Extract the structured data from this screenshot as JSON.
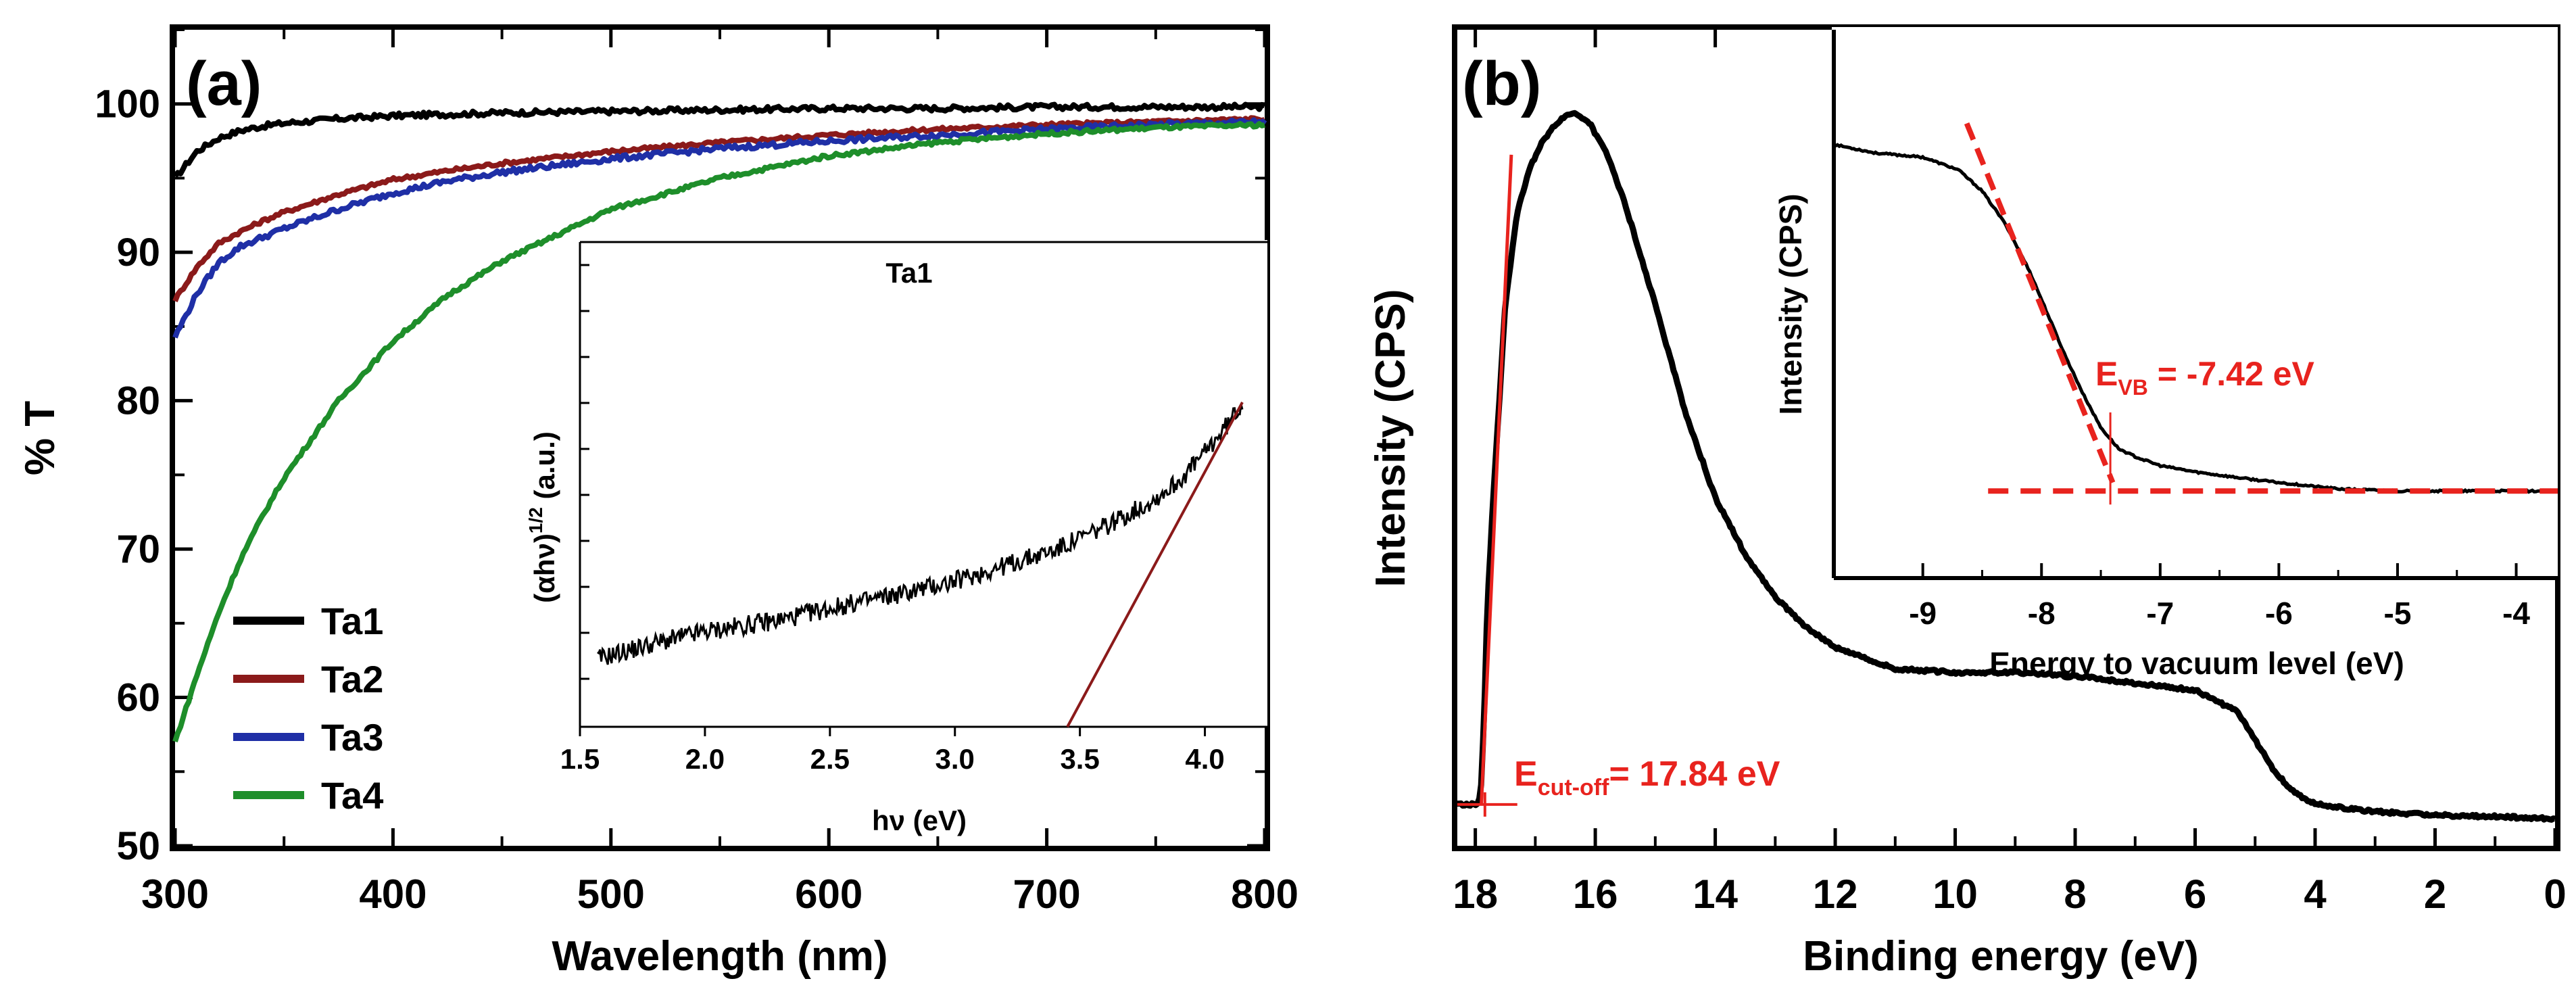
{
  "colors": {
    "ta1": "#000000",
    "ta2": "#8B1A1A",
    "ta3": "#1F2FA6",
    "ta4": "#1E8E2A",
    "fit": "#8B1A1A",
    "annotation": "#E8231E",
    "axis": "#000000"
  },
  "chart_data": [
    {
      "type": "line",
      "panel": "(a)",
      "xlabel": "Wavelength (nm)",
      "ylabel": "% T",
      "xlim": [
        300,
        800
      ],
      "ylim": [
        50,
        105
      ],
      "xticks": [
        300,
        400,
        500,
        600,
        700,
        800
      ],
      "yticks": [
        50,
        60,
        70,
        80,
        90,
        100
      ],
      "legend_position": "bottom-left",
      "x": [
        300,
        310,
        320,
        330,
        340,
        350,
        375,
        400,
        425,
        450,
        500,
        550,
        600,
        650,
        700,
        750,
        800
      ],
      "series": [
        {
          "name": "Ta1",
          "values": [
            95.0,
            96.8,
            97.7,
            98.2,
            98.5,
            98.7,
            99.0,
            99.2,
            99.3,
            99.4,
            99.5,
            99.6,
            99.7,
            99.7,
            99.8,
            99.8,
            99.8
          ]
        },
        {
          "name": "Ta2",
          "values": [
            86.8,
            89.0,
            90.6,
            91.4,
            92.1,
            92.7,
            93.9,
            94.9,
            95.5,
            96.0,
            96.8,
            97.4,
            97.9,
            98.3,
            98.6,
            98.8,
            99.0
          ]
        },
        {
          "name": "Ta3",
          "values": [
            84.3,
            87.2,
            89.3,
            90.4,
            91.0,
            91.6,
            92.9,
            94.0,
            94.8,
            95.4,
            96.3,
            97.0,
            97.5,
            97.9,
            98.3,
            98.6,
            98.8
          ]
        },
        {
          "name": "Ta4",
          "values": [
            57.0,
            61.5,
            65.7,
            69.3,
            72.2,
            74.8,
            80.0,
            84.0,
            87.1,
            89.4,
            92.9,
            95.0,
            96.5,
            97.4,
            98.0,
            98.4,
            98.6
          ]
        }
      ],
      "inset": {
        "type": "line",
        "title": "Ta1",
        "xlabel": "hν (eV)",
        "ylabel_main": "(αhν)",
        "ylabel_sup": "1/2",
        "ylabel_unit": " (a.u.)",
        "xlim": [
          1.5,
          4.25
        ],
        "ylim": [
          0,
          1
        ],
        "xticks": [
          1.5,
          2.0,
          2.5,
          3.0,
          3.5,
          4.0
        ],
        "xtick_labels": [
          "1.5",
          "2.0",
          "2.5",
          "3.0",
          "3.5",
          "4.0"
        ],
        "x": [
          1.57,
          1.8,
          2.0,
          2.3,
          2.5,
          2.8,
          3.0,
          3.2,
          3.4,
          3.6,
          3.8,
          3.9,
          4.0,
          4.1,
          4.15
        ],
        "values": [
          0.14,
          0.18,
          0.21,
          0.24,
          0.27,
          0.31,
          0.34,
          0.38,
          0.42,
          0.48,
          0.55,
          0.6,
          0.67,
          0.75,
          0.8
        ],
        "fit_line": {
          "x": [
            3.45,
            4.15
          ],
          "values": [
            0.0,
            0.8
          ]
        }
      }
    },
    {
      "type": "line",
      "panel": "(b)",
      "xlabel": "Binding energy (eV)",
      "ylabel": "Intensity (CPS)",
      "xlim": [
        18.3,
        0
      ],
      "ylim": [
        0,
        1
      ],
      "xticks": [
        18,
        16,
        14,
        12,
        10,
        8,
        6,
        4,
        2,
        0
      ],
      "x": [
        18.3,
        17.95,
        17.9,
        17.85,
        17.8,
        17.7,
        17.5,
        17.3,
        17.1,
        16.9,
        16.7,
        16.5,
        16.35,
        16.1,
        15.8,
        15.5,
        15.0,
        14.5,
        14.0,
        13.5,
        13.0,
        12.5,
        12.0,
        11.0,
        10.0,
        9.0,
        8.0,
        7.0,
        6.0,
        5.3,
        5.0,
        4.7,
        4.4,
        4.1,
        3.9,
        3.5,
        3.0,
        2.0,
        1.0,
        0.0
      ],
      "series": [
        {
          "name": "spectrum",
          "values": [
            0.02,
            0.02,
            0.05,
            0.15,
            0.3,
            0.45,
            0.72,
            0.85,
            0.91,
            0.945,
            0.97,
            0.985,
            0.99,
            0.975,
            0.93,
            0.86,
            0.72,
            0.57,
            0.45,
            0.37,
            0.31,
            0.27,
            0.24,
            0.21,
            0.205,
            0.205,
            0.2,
            0.19,
            0.18,
            0.15,
            0.11,
            0.07,
            0.04,
            0.025,
            0.02,
            0.015,
            0.01,
            0.005,
            0.003,
            0.0
          ]
        }
      ],
      "annotation": {
        "main": "E",
        "sub": "cut-off",
        "value_text": "= 17.84 eV"
      },
      "cutoff_line": {
        "x": [
          17.9,
          17.4
        ],
        "values": [
          0.02,
          0.93
        ]
      },
      "inset": {
        "type": "line",
        "xlabel": "Energy to vacuum level (eV)",
        "ylabel": "Intensity (CPS)",
        "xlim": [
          -9.75,
          -3.65
        ],
        "ylim": [
          0,
          1
        ],
        "xticks": [
          -9,
          -8,
          -7,
          -6,
          -5,
          -4
        ],
        "xtick_labels": [
          "-9",
          "-8",
          "-7",
          "-6",
          "-5",
          "-4"
        ],
        "x": [
          -9.75,
          -9.4,
          -9.0,
          -8.7,
          -8.5,
          -8.3,
          -8.1,
          -7.95,
          -7.8,
          -7.65,
          -7.5,
          -7.35,
          -7.2,
          -7.0,
          -6.7,
          -6.3,
          -6.0,
          -5.5,
          -5.0,
          -4.5,
          -4.0,
          -3.65
        ],
        "values": [
          0.85,
          0.83,
          0.82,
          0.79,
          0.74,
          0.66,
          0.55,
          0.45,
          0.35,
          0.26,
          0.18,
          0.13,
          0.11,
          0.09,
          0.075,
          0.06,
          0.05,
          0.035,
          0.03,
          0.03,
          0.03,
          0.03
        ],
        "tangent": {
          "x": [
            -8.63,
            -7.4
          ],
          "values": [
            0.9,
            0.05
          ]
        },
        "baseline": {
          "x": [
            -8.45,
            -3.65
          ],
          "values": [
            0.03,
            0.03
          ]
        },
        "annotation": {
          "main": "E",
          "sub": "VB",
          "value_text": " = -7.42 eV"
        }
      }
    }
  ]
}
